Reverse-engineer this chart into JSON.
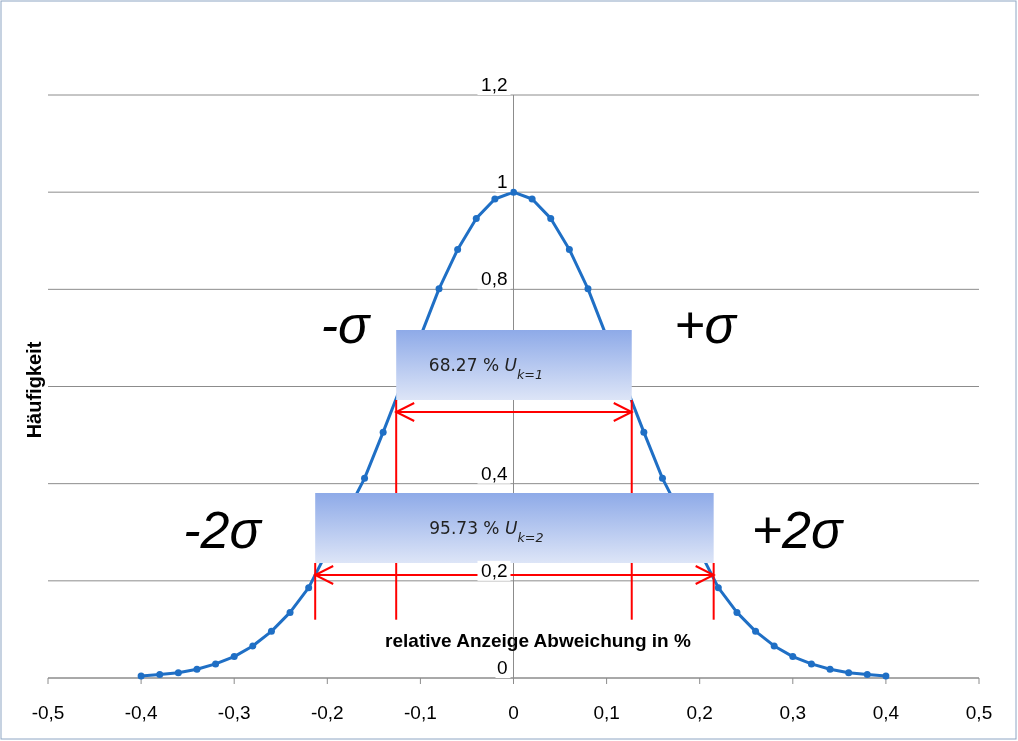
{
  "chart_data": {
    "type": "line",
    "xlabel": "relative Anzeige Abweichung in %",
    "ylabel": "Häufigkeit",
    "x": [
      -0.4,
      -0.38,
      -0.36,
      -0.34,
      -0.32,
      -0.3,
      -0.28,
      -0.26,
      -0.24,
      -0.22,
      -0.2,
      -0.18,
      -0.16,
      -0.14,
      -0.12,
      -0.1,
      -0.08,
      -0.06,
      -0.04,
      -0.02,
      0,
      0.02,
      0.04,
      0.06,
      0.08,
      0.1,
      0.12,
      0.14,
      0.16,
      0.18,
      0.2,
      0.22,
      0.24,
      0.26,
      0.28,
      0.3,
      0.32,
      0.34,
      0.36,
      0.38,
      0.4
    ],
    "series": [
      {
        "color": "#1f6fc5",
        "values": [
          0.004,
          0.007,
          0.011,
          0.018,
          0.029,
          0.044,
          0.066,
          0.096,
          0.135,
          0.186,
          null,
          null,
          0.411,
          0.506,
          null,
          null,
          0.801,
          0.882,
          0.946,
          0.986,
          1,
          0.986,
          0.946,
          0.882,
          0.801,
          null,
          null,
          0.506,
          0.411,
          null,
          null,
          0.186,
          0.135,
          0.096,
          0.066,
          0.044,
          0.029,
          0.018,
          0.011,
          0.007,
          0.004
        ]
      }
    ],
    "xlim": [
      -0.5,
      0.5
    ],
    "xticks": [
      {
        "value": -0.5,
        "label": "-0,5"
      },
      {
        "value": -0.4,
        "label": "-0,4"
      },
      {
        "value": -0.3,
        "label": "-0,3"
      },
      {
        "value": -0.2,
        "label": "-0,2"
      },
      {
        "value": -0.1,
        "label": "-0,1"
      },
      0,
      {
        "value": 0.1,
        "label": "0,1"
      },
      {
        "value": 0.2,
        "label": "0,2"
      },
      {
        "value": 0.3,
        "label": "0,3"
      },
      {
        "value": 0.4,
        "label": "0,4"
      },
      {
        "value": 0.5,
        "label": "0,5"
      }
    ],
    "ylim": [
      0,
      1.2
    ],
    "yticks": [
      0,
      {
        "value": 0.2,
        "label": "0,2"
      },
      {
        "value": 0.4,
        "label": "0,4"
      },
      {
        "value": 0.6,
        "label": null
      },
      {
        "value": 0.8,
        "label": "0,8"
      },
      1,
      {
        "value": 1.2,
        "label": "1,2"
      }
    ],
    "grid": "y",
    "marker": "circle",
    "line_style": "solid",
    "ref_lines": [
      {
        "axis": "x",
        "value": -0.213,
        "label": "-2σ",
        "color": "#ff0000"
      },
      {
        "axis": "x",
        "value": -0.126,
        "label": "-σ",
        "color": "#ff0000"
      },
      {
        "axis": "x",
        "value": 0.127,
        "label": "+σ",
        "color": "#ff0000"
      },
      {
        "axis": "x",
        "value": 0.215,
        "label": "+2σ",
        "color": "#ff0000"
      }
    ],
    "bands": [
      {
        "axis": "x",
        "from": -0.126,
        "to": 0.127,
        "label": "68.27 % U$_{k=1}$",
        "color": "#ff0000"
      },
      {
        "axis": "x",
        "from": -0.213,
        "to": 0.215,
        "label": "95.73 % U$_{k=2}$",
        "color": "#ff0000"
      }
    ]
  }
}
